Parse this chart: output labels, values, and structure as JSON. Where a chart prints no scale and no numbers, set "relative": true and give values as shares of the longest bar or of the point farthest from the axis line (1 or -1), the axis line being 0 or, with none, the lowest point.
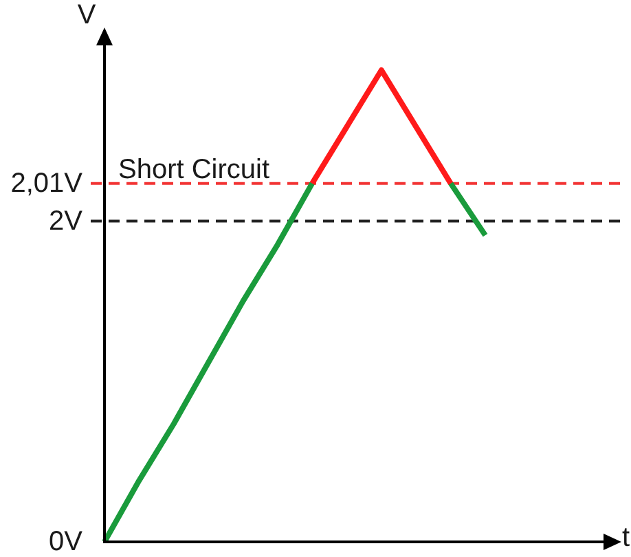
{
  "chart_data": {
    "type": "line",
    "xlabel": "t",
    "ylabel": "V",
    "relative": true,
    "line_style": "solid",
    "categories": [
      null,
      null,
      null,
      null,
      null,
      null,
      null,
      null,
      null,
      null,
      null,
      null
    ],
    "series": [
      {
        "color": "#1a9b3c",
        "values": [
          0,
          0.13,
          0.25,
          0.38,
          0.51,
          0.63,
          0.76,
          null,
          null,
          null,
          0.76,
          0.65
        ]
      },
      {
        "color": "#ff1a1a",
        "values": [
          null,
          null,
          null,
          null,
          null,
          null,
          0.76,
          0.88,
          1,
          0.88,
          0.76,
          null
        ]
      }
    ],
    "ref_lines": [
      {
        "axis": "y",
        "value": 0.76,
        "label": "2,01V",
        "color": "#f23434",
        "line_style": "dashed"
      },
      {
        "axis": "y",
        "value": 0.68,
        "label": "2V",
        "color": "#222222",
        "line_style": "dashed"
      }
    ],
    "annotations": [
      {
        "text": "Short Circuit",
        "y": 0.76
      },
      "0V"
    ]
  }
}
